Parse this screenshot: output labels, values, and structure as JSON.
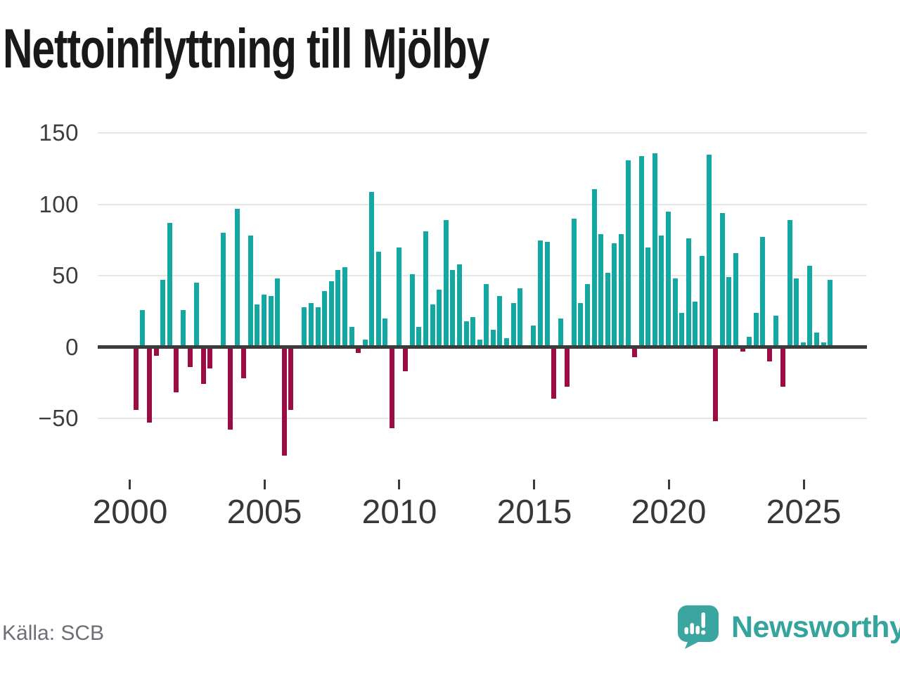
{
  "header": {
    "title": "Nettoinflyttning till Mjölby"
  },
  "footer": {
    "source": "Källa: SCB",
    "brand": "Newsworthy"
  },
  "colors": {
    "positive_bar": "#14A8A2",
    "negative_bar": "#9B0C45",
    "zero_line": "#3C3C3C",
    "gridline": "#E7E7E7",
    "brand_teal": "#3AA69F",
    "axis_text": "#3D3D3D",
    "source_text": "#6E6E76"
  },
  "chart_data": {
    "type": "bar",
    "title": "Nettoinflyttning till Mjölby",
    "freq": "quarterly",
    "start": "2000-Q1",
    "end": "2025-Q4",
    "grid": "horizontal",
    "legend": "none",
    "axis_range": [
      -50,
      150
    ],
    "y_ticks": [
      {
        "label": "150",
        "value": 150
      },
      {
        "label": "100",
        "value": 100
      },
      {
        "label": "50",
        "value": 50
      },
      {
        "label": "0",
        "value": 0
      },
      {
        "label": "−50",
        "value": -50
      }
    ],
    "x_ticks": [
      {
        "label": "2000",
        "year": 2000
      },
      {
        "label": "2005",
        "year": 2005
      },
      {
        "label": "2010",
        "year": 2010
      },
      {
        "label": "2015",
        "year": 2015
      },
      {
        "label": "2020",
        "year": 2020
      },
      {
        "label": "2025",
        "year": 2025
      }
    ],
    "values_by_year": {
      "2000": [
        -44,
        26,
        -53,
        -6
      ],
      "2001": [
        47,
        87,
        -32,
        26
      ],
      "2002": [
        -14,
        45,
        -26,
        -15
      ],
      "2003": [
        0,
        80,
        -58,
        97
      ],
      "2004": [
        -22,
        78,
        30,
        37
      ],
      "2005": [
        36,
        48,
        -76,
        -44
      ],
      "2006": [
        0,
        28,
        31,
        28
      ],
      "2007": [
        39,
        46,
        54,
        56
      ],
      "2008": [
        14,
        -4,
        5,
        109
      ],
      "2009": [
        67,
        20,
        -57,
        70
      ],
      "2010": [
        -17,
        51,
        14,
        81
      ],
      "2011": [
        30,
        40,
        89,
        54
      ],
      "2012": [
        58,
        18,
        21,
        5
      ],
      "2013": [
        44,
        12,
        36,
        6
      ],
      "2014": [
        31,
        41,
        0,
        15
      ],
      "2015": [
        75,
        74,
        -36,
        20
      ],
      "2016": [
        -28,
        90,
        31,
        44
      ],
      "2017": [
        111,
        79,
        52,
        73
      ],
      "2018": [
        79,
        131,
        -7,
        134
      ],
      "2019": [
        70,
        136,
        78,
        95
      ],
      "2020": [
        48,
        24,
        76,
        32
      ],
      "2021": [
        64,
        135,
        -52,
        94
      ],
      "2022": [
        49,
        66,
        -3,
        7
      ],
      "2023": [
        24,
        77,
        -10,
        22
      ],
      "2024": [
        -28,
        89,
        48,
        3
      ],
      "2025": [
        57,
        10,
        3,
        47
      ]
    }
  }
}
